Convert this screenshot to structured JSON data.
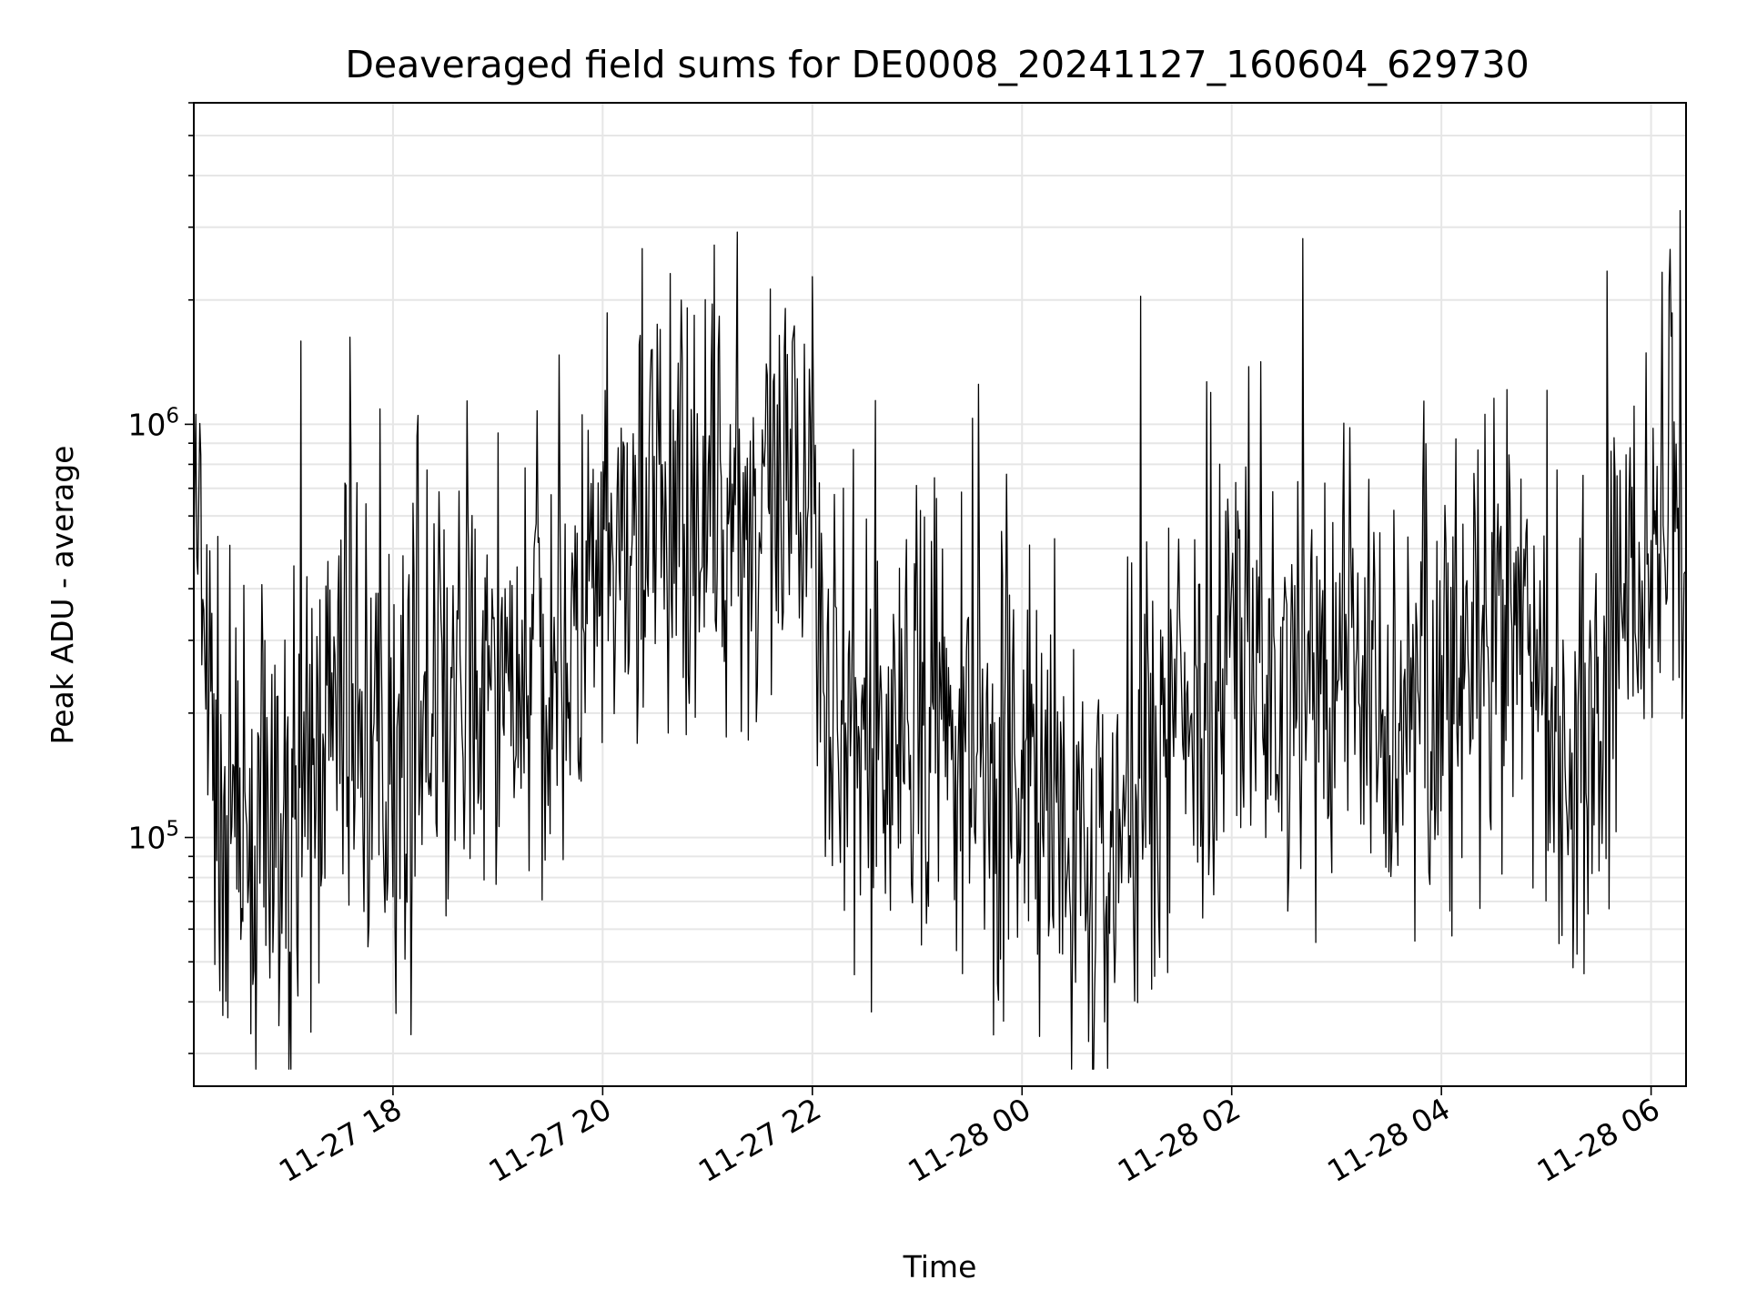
{
  "chart_data": {
    "type": "line",
    "title": "Deaveraged field sums for DE0008_20241127_160604_629730",
    "xlabel": "Time",
    "ylabel": "Peak ADU - average",
    "yscale": "log",
    "ylim": [
      25000,
      6000000
    ],
    "xlim": [
      "2024-11-27 16:06",
      "2024-11-28 06:20"
    ],
    "x_ticks": [
      {
        "value": "2024-11-27 18:00",
        "label": "11-27 18"
      },
      {
        "value": "2024-11-27 20:00",
        "label": "11-27 20"
      },
      {
        "value": "2024-11-27 22:00",
        "label": "11-27 22"
      },
      {
        "value": "2024-11-28 00:00",
        "label": "11-28 00"
      },
      {
        "value": "2024-11-28 02:00",
        "label": "11-28 02"
      },
      {
        "value": "2024-11-28 04:00",
        "label": "11-28 04"
      },
      {
        "value": "2024-11-28 06:00",
        "label": "11-28 06"
      }
    ],
    "y_ticks": [
      {
        "value": 100000,
        "base": "10",
        "exp": "5"
      },
      {
        "value": 1000000,
        "base": "10",
        "exp": "6"
      }
    ],
    "grid": true,
    "line_color": "#000000",
    "grid_color": "#e6e6e6",
    "series": [
      {
        "x": [
          "2024-11-27 16:06",
          "2024-11-27 16:10",
          "2024-11-27 16:15",
          "2024-11-27 16:20",
          "2024-11-27 16:30",
          "2024-11-27 16:40",
          "2024-11-27 16:50",
          "2024-11-27 17:00",
          "2024-11-27 17:10",
          "2024-11-27 17:20",
          "2024-11-27 17:30",
          "2024-11-27 17:40",
          "2024-11-27 17:50",
          "2024-11-27 18:00",
          "2024-11-27 18:10",
          "2024-11-27 18:20",
          "2024-11-27 18:30",
          "2024-11-27 18:40",
          "2024-11-27 18:50",
          "2024-11-27 19:00",
          "2024-11-27 19:10",
          "2024-11-27 19:20",
          "2024-11-27 19:30",
          "2024-11-27 19:40",
          "2024-11-27 19:50",
          "2024-11-27 20:00",
          "2024-11-27 20:10",
          "2024-11-27 20:20",
          "2024-11-27 20:30",
          "2024-11-27 20:40",
          "2024-11-27 20:50",
          "2024-11-27 21:00",
          "2024-11-27 21:10",
          "2024-11-27 21:20",
          "2024-11-27 21:30",
          "2024-11-27 21:40",
          "2024-11-27 21:50",
          "2024-11-27 22:00",
          "2024-11-27 22:10",
          "2024-11-27 22:20",
          "2024-11-27 22:30",
          "2024-11-27 22:40",
          "2024-11-27 22:50",
          "2024-11-27 23:00",
          "2024-11-27 23:10",
          "2024-11-27 23:20",
          "2024-11-27 23:30",
          "2024-11-27 23:40",
          "2024-11-27 23:50",
          "2024-11-28 00:00",
          "2024-11-28 00:10",
          "2024-11-28 00:20",
          "2024-11-28 00:30",
          "2024-11-28 00:40",
          "2024-11-28 00:50",
          "2024-11-28 01:00",
          "2024-11-28 01:10",
          "2024-11-28 01:20",
          "2024-11-28 01:30",
          "2024-11-28 01:40",
          "2024-11-28 01:50",
          "2024-11-28 02:00",
          "2024-11-28 02:10",
          "2024-11-28 02:20",
          "2024-11-28 02:30",
          "2024-11-28 02:40",
          "2024-11-28 02:50",
          "2024-11-28 03:00",
          "2024-11-28 03:10",
          "2024-11-28 03:20",
          "2024-11-28 03:30",
          "2024-11-28 03:40",
          "2024-11-28 03:50",
          "2024-11-28 04:00",
          "2024-11-28 04:10",
          "2024-11-28 04:20",
          "2024-11-28 04:30",
          "2024-11-28 04:40",
          "2024-11-28 04:50",
          "2024-11-28 05:00",
          "2024-11-28 05:10",
          "2024-11-28 05:20",
          "2024-11-28 05:30",
          "2024-11-28 05:40",
          "2024-11-28 05:50",
          "2024-11-28 06:00",
          "2024-11-28 06:10",
          "2024-11-28 06:20"
        ],
        "y": [
          700000,
          350000,
          200000,
          120000,
          100000,
          90000,
          85000,
          95000,
          110000,
          180000,
          220000,
          190000,
          160000,
          150000,
          170000,
          180000,
          200000,
          230000,
          220000,
          210000,
          230000,
          250000,
          270000,
          300000,
          320000,
          380000,
          450000,
          520000,
          560000,
          600000,
          620000,
          640000,
          610000,
          600000,
          580000,
          560000,
          600000,
          900000,
          200000,
          150000,
          160000,
          170000,
          180000,
          190000,
          200000,
          180000,
          160000,
          150000,
          140000,
          130000,
          120000,
          100000,
          85000,
          80000,
          90000,
          120000,
          150000,
          180000,
          200000,
          220000,
          230000,
          250000,
          260000,
          240000,
          230000,
          220000,
          210000,
          230000,
          240000,
          220000,
          200000,
          210000,
          220000,
          230000,
          240000,
          250000,
          260000,
          280000,
          300000,
          200000,
          180000,
          170000,
          200000,
          300000,
          350000,
          500000,
          600000,
          400000
        ]
      }
    ]
  }
}
